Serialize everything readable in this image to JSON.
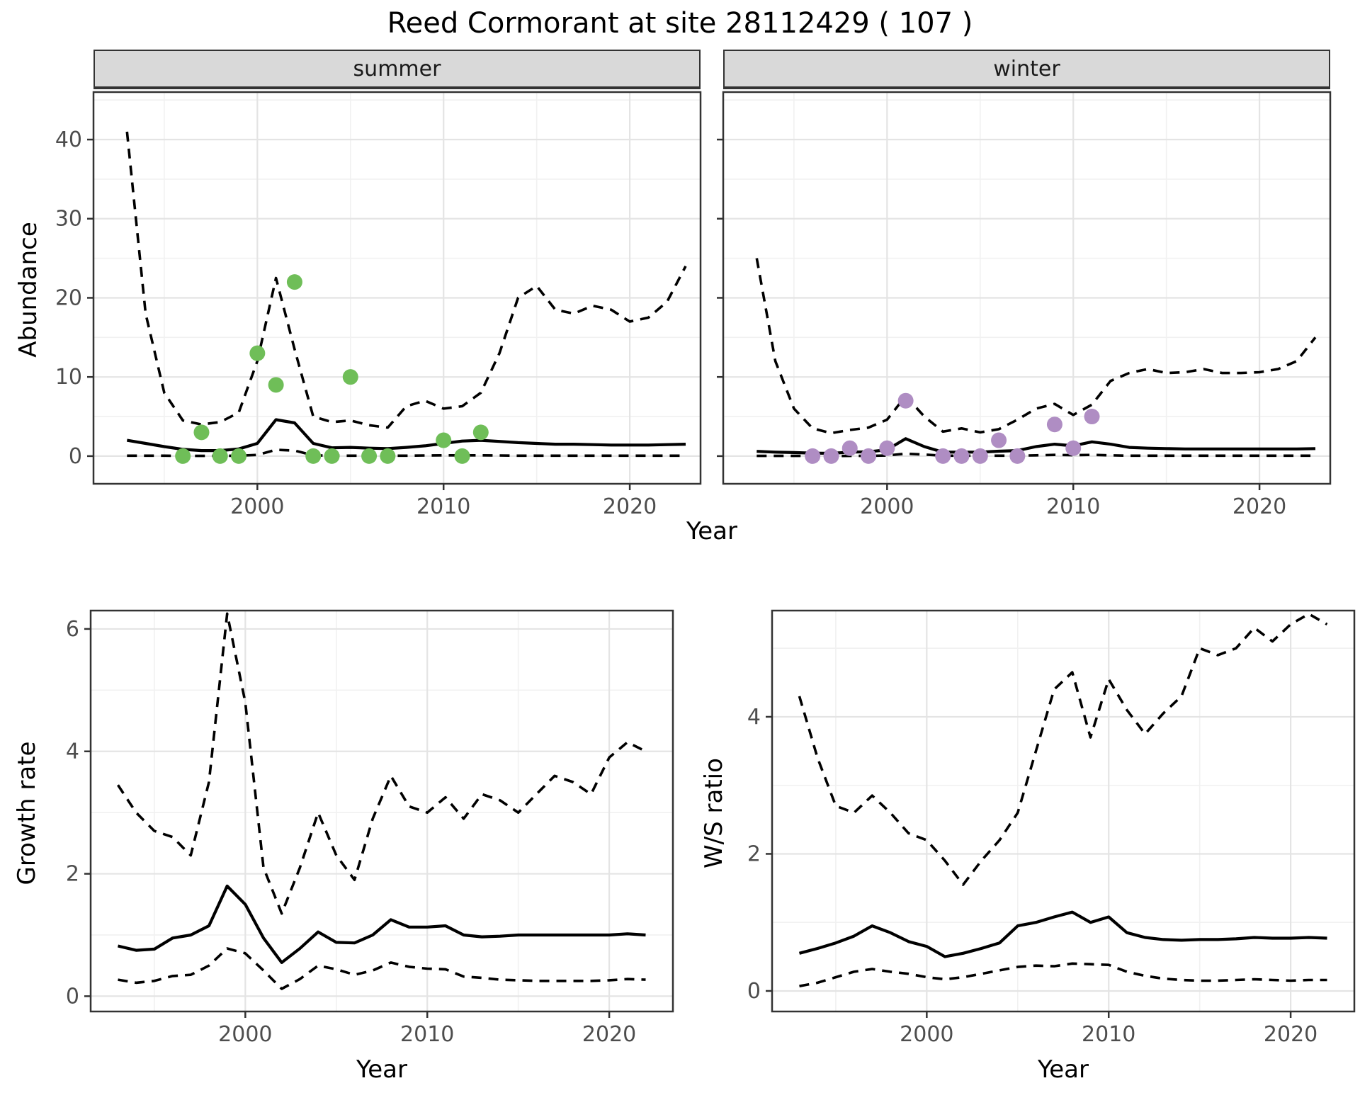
{
  "title": "Reed Cormorant at site 28112429 ( 107 )",
  "colors": {
    "summer_points": "#6FBE58",
    "winter_points": "#AF8DC3",
    "line": "#000000",
    "strip_bg": "#d9d9d9",
    "grid_major": "#e4e4e4",
    "grid_minor": "#f1f1f1",
    "panel_border": "#333333",
    "tick_label": "#4d4d4d"
  },
  "top_row": {
    "ylabel": "Abundance",
    "xlabel": "Year",
    "facets": [
      {
        "label": "summer"
      },
      {
        "label": "winter"
      }
    ]
  },
  "bottom_row": {
    "left_ylabel": "Growth rate",
    "left_xlabel": "Year",
    "right_ylabel": "W/S ratio",
    "right_xlabel": "Year"
  },
  "chart_data": [
    {
      "id": "summer",
      "type": "line",
      "title": "summer",
      "xlabel": "Year",
      "ylabel": "Abundance",
      "xlim": [
        1991.2,
        2023.8
      ],
      "ylim": [
        -3.5,
        46
      ],
      "xticks": [
        2000,
        2010,
        2020
      ],
      "xtick_labels": [
        "2000",
        "2010",
        "2020"
      ],
      "xminor": [
        1995,
        2005,
        2015
      ],
      "yticks": [
        0,
        10,
        20,
        30,
        40
      ],
      "ytick_labels": [
        "0",
        "10",
        "20",
        "30",
        "40"
      ],
      "yminor": [
        5,
        15,
        25,
        35,
        45
      ],
      "show_ytick_labels": true,
      "x": [
        1993,
        1994,
        1995,
        1996,
        1997,
        1998,
        1999,
        2000,
        2001,
        2002,
        2003,
        2004,
        2005,
        2006,
        2007,
        2008,
        2009,
        2010,
        2011,
        2012,
        2013,
        2014,
        2015,
        2016,
        2017,
        2018,
        2019,
        2020,
        2021,
        2022,
        2023
      ],
      "series": [
        {
          "name": "upper_ci",
          "style": "dashed",
          "values": [
            41,
            18,
            8,
            4.5,
            4.0,
            4.3,
            5.5,
            12,
            22.5,
            13.5,
            5.0,
            4.3,
            4.5,
            3.9,
            3.6,
            6.3,
            7.0,
            6.0,
            6.3,
            8.0,
            13.0,
            20.0,
            21.5,
            18.5,
            18.0,
            19.0,
            18.5,
            17.0,
            17.5,
            19.5,
            24.0
          ]
        },
        {
          "name": "median",
          "style": "solid",
          "values": [
            2.0,
            1.6,
            1.2,
            0.85,
            0.7,
            0.7,
            0.9,
            1.6,
            4.6,
            4.2,
            1.6,
            1.05,
            1.1,
            1.0,
            0.95,
            1.1,
            1.3,
            1.6,
            1.9,
            2.0,
            1.85,
            1.7,
            1.6,
            1.5,
            1.5,
            1.45,
            1.4,
            1.4,
            1.4,
            1.45,
            1.5
          ]
        },
        {
          "name": "lower_ci",
          "style": "dashed",
          "values": [
            0.05,
            0.05,
            0.05,
            0.03,
            0.03,
            0.03,
            0.05,
            0.15,
            0.8,
            0.7,
            0.1,
            0.05,
            0.05,
            0.05,
            0.05,
            0.05,
            0.08,
            0.1,
            0.1,
            0.1,
            0.08,
            0.05,
            0.05,
            0.05,
            0.05,
            0.05,
            0.05,
            0.05,
            0.05,
            0.05,
            0.05
          ]
        }
      ],
      "points": {
        "name": "observed_counts",
        "color_key": "summer_points",
        "x": [
          1996,
          1997,
          1998,
          1999,
          2000,
          2001,
          2002,
          2003,
          2004,
          2005,
          2006,
          2007,
          2010,
          2011,
          2012
        ],
        "y": [
          0,
          3,
          0,
          0,
          13,
          9,
          22,
          0,
          0,
          10,
          0,
          0,
          2,
          0,
          3
        ]
      }
    },
    {
      "id": "winter",
      "type": "line",
      "title": "winter",
      "xlabel": "Year",
      "ylabel": "Abundance",
      "xlim": [
        1991.2,
        2023.8
      ],
      "ylim": [
        -3.5,
        46
      ],
      "xticks": [
        2000,
        2010,
        2020
      ],
      "xtick_labels": [
        "2000",
        "2010",
        "2020"
      ],
      "xminor": [
        1995,
        2005,
        2015
      ],
      "yticks": [
        0,
        10,
        20,
        30,
        40
      ],
      "ytick_labels": [
        "0",
        "10",
        "20",
        "30",
        "40"
      ],
      "yminor": [
        5,
        15,
        25,
        35,
        45
      ],
      "show_ytick_labels": false,
      "x": [
        1993,
        1994,
        1995,
        1996,
        1997,
        1998,
        1999,
        2000,
        2001,
        2002,
        2003,
        2004,
        2005,
        2006,
        2007,
        2008,
        2009,
        2010,
        2011,
        2012,
        2013,
        2014,
        2015,
        2016,
        2017,
        2018,
        2019,
        2020,
        2021,
        2022,
        2023
      ],
      "series": [
        {
          "name": "upper_ci",
          "style": "dashed",
          "values": [
            25,
            12,
            6,
            3.5,
            2.9,
            3.3,
            3.6,
            4.6,
            7.6,
            5.0,
            3.1,
            3.5,
            3.0,
            3.4,
            4.6,
            6.0,
            6.6,
            5.2,
            6.5,
            9.5,
            10.5,
            11.0,
            10.5,
            10.6,
            11.0,
            10.5,
            10.5,
            10.6,
            11.0,
            12.0,
            15.0
          ]
        },
        {
          "name": "median",
          "style": "solid",
          "values": [
            0.6,
            0.5,
            0.45,
            0.38,
            0.35,
            0.5,
            0.55,
            0.8,
            2.2,
            1.2,
            0.5,
            0.5,
            0.5,
            0.62,
            0.7,
            1.2,
            1.5,
            1.3,
            1.8,
            1.5,
            1.1,
            1.0,
            0.95,
            0.9,
            0.9,
            0.9,
            0.9,
            0.9,
            0.9,
            0.9,
            0.95
          ]
        },
        {
          "name": "lower_ci",
          "style": "dashed",
          "values": [
            0.03,
            0.03,
            0.03,
            0.02,
            0.02,
            0.03,
            0.03,
            0.08,
            0.3,
            0.2,
            0.05,
            0.05,
            0.05,
            0.05,
            0.05,
            0.1,
            0.15,
            0.12,
            0.15,
            0.1,
            0.05,
            0.05,
            0.05,
            0.05,
            0.05,
            0.05,
            0.05,
            0.05,
            0.05,
            0.05,
            0.05
          ]
        }
      ],
      "points": {
        "name": "observed_counts",
        "color_key": "winter_points",
        "x": [
          1996,
          1997,
          1998,
          1999,
          2000,
          2001,
          2003,
          2004,
          2005,
          2006,
          2007,
          2009,
          2010,
          2011
        ],
        "y": [
          0,
          0,
          1,
          0,
          1,
          7,
          0,
          0,
          0,
          2,
          0,
          4,
          1,
          5
        ]
      }
    },
    {
      "id": "growth",
      "type": "line",
      "title": "",
      "xlabel": "Year",
      "ylabel": "Growth rate",
      "xlim": [
        1991.5,
        2023.5
      ],
      "ylim": [
        -0.25,
        6.3
      ],
      "xticks": [
        2000,
        2010,
        2020
      ],
      "xtick_labels": [
        "2000",
        "2010",
        "2020"
      ],
      "xminor": [
        1995,
        2005,
        2015
      ],
      "yticks": [
        0,
        2,
        4,
        6
      ],
      "ytick_labels": [
        "0",
        "2",
        "4",
        "6"
      ],
      "yminor": [
        1,
        3,
        5
      ],
      "show_ytick_labels": true,
      "x": [
        1993,
        1994,
        1995,
        1996,
        1997,
        1998,
        1999,
        2000,
        2001,
        2002,
        2003,
        2004,
        2005,
        2006,
        2007,
        2008,
        2009,
        2010,
        2011,
        2012,
        2013,
        2014,
        2015,
        2016,
        2017,
        2018,
        2019,
        2020,
        2021,
        2022
      ],
      "series": [
        {
          "name": "upper_ci",
          "style": "dashed",
          "values": [
            3.45,
            3.0,
            2.7,
            2.6,
            2.3,
            3.5,
            6.25,
            4.8,
            2.1,
            1.35,
            2.1,
            3.0,
            2.3,
            1.9,
            2.9,
            3.6,
            3.1,
            3.0,
            3.25,
            2.9,
            3.3,
            3.2,
            3.0,
            3.3,
            3.6,
            3.5,
            3.3,
            3.9,
            4.15,
            4.0
          ]
        },
        {
          "name": "median",
          "style": "solid",
          "values": [
            0.82,
            0.75,
            0.77,
            0.95,
            1.0,
            1.15,
            1.8,
            1.5,
            0.95,
            0.55,
            0.78,
            1.05,
            0.88,
            0.87,
            1.0,
            1.25,
            1.13,
            1.13,
            1.15,
            1.0,
            0.97,
            0.98,
            1.0,
            1.0,
            1.0,
            1.0,
            1.0,
            1.0,
            1.02,
            1.0
          ]
        },
        {
          "name": "lower_ci",
          "style": "dashed",
          "values": [
            0.27,
            0.22,
            0.25,
            0.33,
            0.35,
            0.5,
            0.78,
            0.7,
            0.42,
            0.12,
            0.28,
            0.5,
            0.44,
            0.35,
            0.42,
            0.55,
            0.48,
            0.45,
            0.44,
            0.32,
            0.3,
            0.27,
            0.26,
            0.25,
            0.25,
            0.25,
            0.25,
            0.26,
            0.28,
            0.27
          ]
        }
      ]
    },
    {
      "id": "ws_ratio",
      "type": "line",
      "title": "",
      "xlabel": "Year",
      "ylabel": "W/S ratio",
      "xlim": [
        1991.5,
        2023.5
      ],
      "ylim": [
        -0.3,
        5.55
      ],
      "xticks": [
        2000,
        2010,
        2020
      ],
      "xtick_labels": [
        "2000",
        "2010",
        "2020"
      ],
      "xminor": [
        1995,
        2005,
        2015
      ],
      "yticks": [
        0,
        2,
        4
      ],
      "ytick_labels": [
        "0",
        "2",
        "4"
      ],
      "yminor": [
        1,
        3,
        5
      ],
      "show_ytick_labels": true,
      "x": [
        1993,
        1994,
        1995,
        1996,
        1997,
        1998,
        1999,
        2000,
        2001,
        2002,
        2003,
        2004,
        2005,
        2006,
        2007,
        2008,
        2009,
        2010,
        2011,
        2012,
        2013,
        2014,
        2015,
        2016,
        2017,
        2018,
        2019,
        2020,
        2021,
        2022
      ],
      "series": [
        {
          "name": "upper_ci",
          "style": "dashed",
          "values": [
            4.3,
            3.4,
            2.7,
            2.6,
            2.85,
            2.6,
            2.3,
            2.2,
            1.9,
            1.55,
            1.9,
            2.2,
            2.6,
            3.5,
            4.4,
            4.65,
            3.7,
            4.55,
            4.1,
            3.75,
            4.05,
            4.3,
            5.0,
            4.9,
            5.0,
            5.3,
            5.1,
            5.35,
            5.5,
            5.35
          ]
        },
        {
          "name": "median",
          "style": "solid",
          "values": [
            0.55,
            0.62,
            0.7,
            0.8,
            0.95,
            0.85,
            0.72,
            0.65,
            0.5,
            0.55,
            0.62,
            0.7,
            0.95,
            1.0,
            1.08,
            1.15,
            1.0,
            1.08,
            0.85,
            0.78,
            0.75,
            0.74,
            0.75,
            0.75,
            0.76,
            0.78,
            0.77,
            0.77,
            0.78,
            0.77
          ]
        },
        {
          "name": "lower_ci",
          "style": "dashed",
          "values": [
            0.07,
            0.12,
            0.2,
            0.28,
            0.32,
            0.28,
            0.25,
            0.2,
            0.17,
            0.2,
            0.25,
            0.3,
            0.35,
            0.37,
            0.36,
            0.4,
            0.39,
            0.38,
            0.28,
            0.22,
            0.18,
            0.16,
            0.15,
            0.15,
            0.16,
            0.17,
            0.16,
            0.15,
            0.16,
            0.16
          ]
        }
      ]
    }
  ]
}
